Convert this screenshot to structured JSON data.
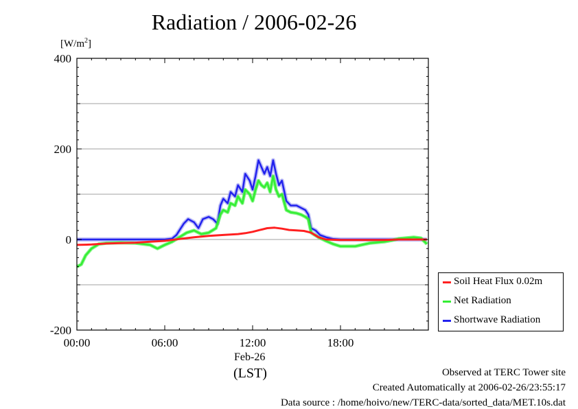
{
  "title": "Radiation / 2006-02-26",
  "unit_label": "[W/m",
  "unit_sup": "2",
  "unit_close": "]",
  "x_date_label": "Feb-26",
  "x_zone_label": "(LST)",
  "footer": {
    "line1": "Observed at TERC Tower site",
    "line2": "Created Automatically at 2006-02-26/23:55:17",
    "line3": "Data source : /home/hoivo/new/TERC-data/sorted_data/MET.10s.dat"
  },
  "colors": {
    "soil": "#ff2020",
    "net": "#33ee33",
    "shortwave": "#2222ee",
    "shortwave_spread": "#8888ee",
    "grid": "#a0a0a0"
  },
  "chart_data": {
    "type": "line",
    "title": "Radiation / 2006-02-26",
    "xlabel": "(LST)",
    "ylabel": "[W/m2]",
    "xlim": [
      0,
      24
    ],
    "ylim": [
      -200,
      400
    ],
    "yticks": [
      -200,
      0,
      200,
      400
    ],
    "xticks": [
      0,
      6,
      12,
      18
    ],
    "xtick_labels": [
      "00:00",
      "06:00",
      "12:00",
      "18:00"
    ],
    "grid": true,
    "legend_position": "bottom-right, outside plot",
    "series": [
      {
        "name": "Soil Heat Flux 0.02m",
        "color": "#ff2020",
        "x": [
          0,
          1,
          2,
          3,
          4,
          5,
          6,
          7,
          8,
          9,
          10,
          11,
          11.5,
          12,
          12.5,
          13,
          13.5,
          14,
          14.5,
          15,
          15.5,
          16,
          16.5,
          17,
          18,
          19,
          20,
          21,
          22,
          23,
          23.9
        ],
        "y": [
          -12,
          -11,
          -9,
          -8,
          -7,
          -5,
          -3,
          1,
          5,
          8,
          10,
          12,
          14,
          17,
          21,
          25,
          26,
          24,
          21,
          20,
          19,
          15,
          5,
          0,
          -1,
          -1,
          -1,
          -1,
          0,
          0,
          0
        ]
      },
      {
        "name": "Net Radiation",
        "color": "#33ee33",
        "x": [
          0,
          0.3,
          0.6,
          1,
          1.5,
          2,
          3,
          4,
          5,
          5.5,
          6,
          6.5,
          7,
          7.5,
          8,
          8.5,
          9,
          9.5,
          9.8,
          10,
          10.3,
          10.5,
          10.8,
          11,
          11.3,
          11.5,
          11.8,
          12,
          12.2,
          12.4,
          12.6,
          12.8,
          13,
          13.2,
          13.4,
          13.6,
          13.8,
          14,
          14.3,
          14.6,
          15,
          15.3,
          15.6,
          15.8,
          16,
          16.5,
          17,
          17.5,
          18,
          19,
          20,
          21,
          21.5,
          22,
          23,
          23.5,
          23.9
        ],
        "y": [
          -60,
          -55,
          -35,
          -20,
          -10,
          -8,
          -7,
          -8,
          -12,
          -20,
          -12,
          -5,
          5,
          15,
          20,
          12,
          15,
          25,
          55,
          65,
          60,
          80,
          75,
          95,
          80,
          110,
          100,
          85,
          110,
          130,
          120,
          115,
          125,
          105,
          140,
          110,
          95,
          100,
          65,
          60,
          58,
          55,
          50,
          45,
          15,
          5,
          -3,
          -10,
          -15,
          -15,
          -8,
          -5,
          -2,
          2,
          5,
          3,
          -10
        ]
      },
      {
        "name": "Shortwave Radiation",
        "color": "#2222ee",
        "x": [
          0,
          1,
          2,
          3,
          4,
          5,
          6,
          6.5,
          6.8,
          7,
          7.3,
          7.6,
          8,
          8.3,
          8.6,
          9,
          9.3,
          9.6,
          9.8,
          10,
          10.3,
          10.5,
          10.8,
          11,
          11.3,
          11.5,
          11.8,
          12,
          12.2,
          12.4,
          12.6,
          12.8,
          13,
          13.2,
          13.4,
          13.6,
          13.8,
          14,
          14.3,
          14.6,
          15,
          15.3,
          15.6,
          15.8,
          16,
          16.3,
          16.6,
          17,
          17.5,
          18,
          20,
          22,
          23.9
        ],
        "y": [
          0,
          0,
          0,
          0,
          0,
          0,
          0,
          2,
          10,
          20,
          35,
          45,
          38,
          25,
          45,
          50,
          45,
          35,
          75,
          90,
          80,
          105,
          95,
          120,
          105,
          145,
          130,
          110,
          140,
          175,
          160,
          145,
          160,
          140,
          175,
          145,
          120,
          130,
          85,
          75,
          75,
          70,
          65,
          55,
          25,
          20,
          10,
          5,
          1,
          0,
          0,
          0,
          0
        ]
      }
    ]
  }
}
